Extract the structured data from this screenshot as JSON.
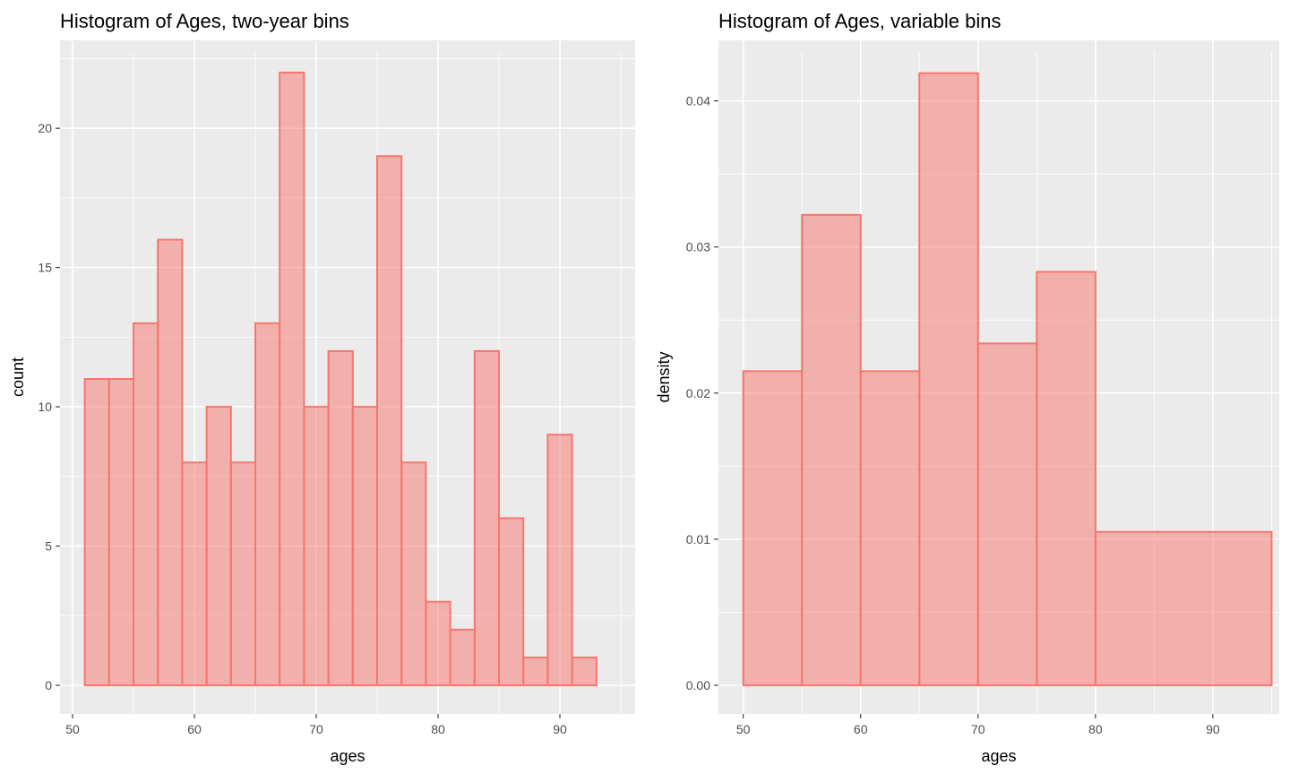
{
  "chart_data": [
    {
      "type": "bar",
      "title": "Histogram of Ages, two-year bins",
      "xlabel": "ages",
      "ylabel": "count",
      "xlim": [
        50,
        95
      ],
      "ylim": [
        0,
        22
      ],
      "x_ticks": [
        50,
        60,
        70,
        80,
        90
      ],
      "y_ticks": [
        0,
        5,
        10,
        15,
        20
      ],
      "grid": true,
      "legend": "none",
      "fill_color": "#f8766d",
      "bins": [
        {
          "start": 51,
          "end": 53,
          "value": 11
        },
        {
          "start": 53,
          "end": 55,
          "value": 11
        },
        {
          "start": 55,
          "end": 57,
          "value": 13
        },
        {
          "start": 57,
          "end": 59,
          "value": 16
        },
        {
          "start": 59,
          "end": 61,
          "value": 8
        },
        {
          "start": 61,
          "end": 63,
          "value": 10
        },
        {
          "start": 63,
          "end": 65,
          "value": 8
        },
        {
          "start": 65,
          "end": 67,
          "value": 13
        },
        {
          "start": 67,
          "end": 69,
          "value": 22
        },
        {
          "start": 69,
          "end": 71,
          "value": 10
        },
        {
          "start": 71,
          "end": 73,
          "value": 12
        },
        {
          "start": 73,
          "end": 75,
          "value": 10
        },
        {
          "start": 75,
          "end": 77,
          "value": 19
        },
        {
          "start": 77,
          "end": 79,
          "value": 8
        },
        {
          "start": 79,
          "end": 81,
          "value": 3
        },
        {
          "start": 81,
          "end": 83,
          "value": 2
        },
        {
          "start": 83,
          "end": 85,
          "value": 12
        },
        {
          "start": 85,
          "end": 87,
          "value": 6
        },
        {
          "start": 87,
          "end": 89,
          "value": 1
        },
        {
          "start": 89,
          "end": 91,
          "value": 9
        },
        {
          "start": 91,
          "end": 93,
          "value": 1
        }
      ]
    },
    {
      "type": "bar",
      "title": "Histogram of Ages, variable bins",
      "xlabel": "ages",
      "ylabel": "density",
      "xlim": [
        48.5,
        95.5
      ],
      "ylim": [
        0,
        0.042
      ],
      "x_ticks": [
        50,
        60,
        70,
        80,
        90
      ],
      "y_ticks": [
        0.0,
        0.01,
        0.02,
        0.03,
        0.04
      ],
      "y_tick_labels": [
        "0.00",
        "0.01",
        "0.02",
        "0.03",
        "0.04"
      ],
      "grid": true,
      "legend": "none",
      "fill_color": "#f8766d",
      "bins": [
        {
          "start": 50,
          "end": 55,
          "value": 0.0215
        },
        {
          "start": 55,
          "end": 60,
          "value": 0.0322
        },
        {
          "start": 60,
          "end": 65,
          "value": 0.0215
        },
        {
          "start": 65,
          "end": 70,
          "value": 0.0419
        },
        {
          "start": 70,
          "end": 75,
          "value": 0.0234
        },
        {
          "start": 75,
          "end": 80,
          "value": 0.0283
        },
        {
          "start": 80,
          "end": 95,
          "value": 0.0105
        }
      ]
    }
  ]
}
